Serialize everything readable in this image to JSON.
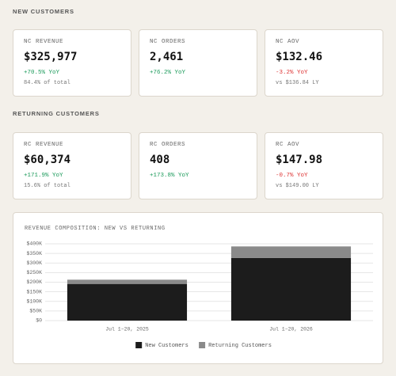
{
  "sections": [
    {
      "title": "NEW CUSTOMERS",
      "cards": [
        {
          "label": "NC REVENUE",
          "value": "$325,977",
          "change": "+70.5% YoY",
          "note": "84.4% of total"
        },
        {
          "label": "NC ORDERS",
          "value": "2,461",
          "change": "+76.2% YoY"
        },
        {
          "label": "NC AOV",
          "value": "$132.46",
          "change": "-3.2% YoY",
          "note": "vs $136.84 LY"
        }
      ]
    },
    {
      "title": "RETURNING CUSTOMERS",
      "cards": [
        {
          "label": "RC REVENUE",
          "value": "$60,374",
          "change": "+171.9% YoY",
          "note": "15.6% of total"
        },
        {
          "label": "RC ORDERS",
          "value": "408",
          "change": "+173.8% YoY"
        },
        {
          "label": "RC AOV",
          "value": "$147.98",
          "change": "-0.7% YoY",
          "note": "vs $149.00 LY"
        }
      ]
    }
  ],
  "chart_data": {
    "type": "stacked_bar",
    "title": "REVENUE COMPOSITION: NEW VS RETURNING",
    "categories": [
      "Jul 1–20, 2025",
      "Jul 1–20, 2026"
    ],
    "series": [
      {
        "name": "New Customers",
        "color": "#1c1c1c",
        "values": [
          191000,
          325977
        ]
      },
      {
        "name": "Returning Customers",
        "color": "#8a8a8a",
        "values": [
          22000,
          60374
        ]
      }
    ],
    "ylim": [
      0,
      400000
    ],
    "yticks": [
      {
        "value": 0,
        "label": "$0"
      },
      {
        "value": 50000,
        "label": "$50K"
      },
      {
        "value": 100000,
        "label": "$100K"
      },
      {
        "value": 150000,
        "label": "$150K"
      },
      {
        "value": 200000,
        "label": "$200K"
      },
      {
        "value": 250000,
        "label": "$250K"
      },
      {
        "value": 300000,
        "label": "$300K"
      },
      {
        "value": 350000,
        "label": "$350K"
      },
      {
        "value": 400000,
        "label": "$400K"
      }
    ],
    "grid": true,
    "legend": "bottom"
  }
}
